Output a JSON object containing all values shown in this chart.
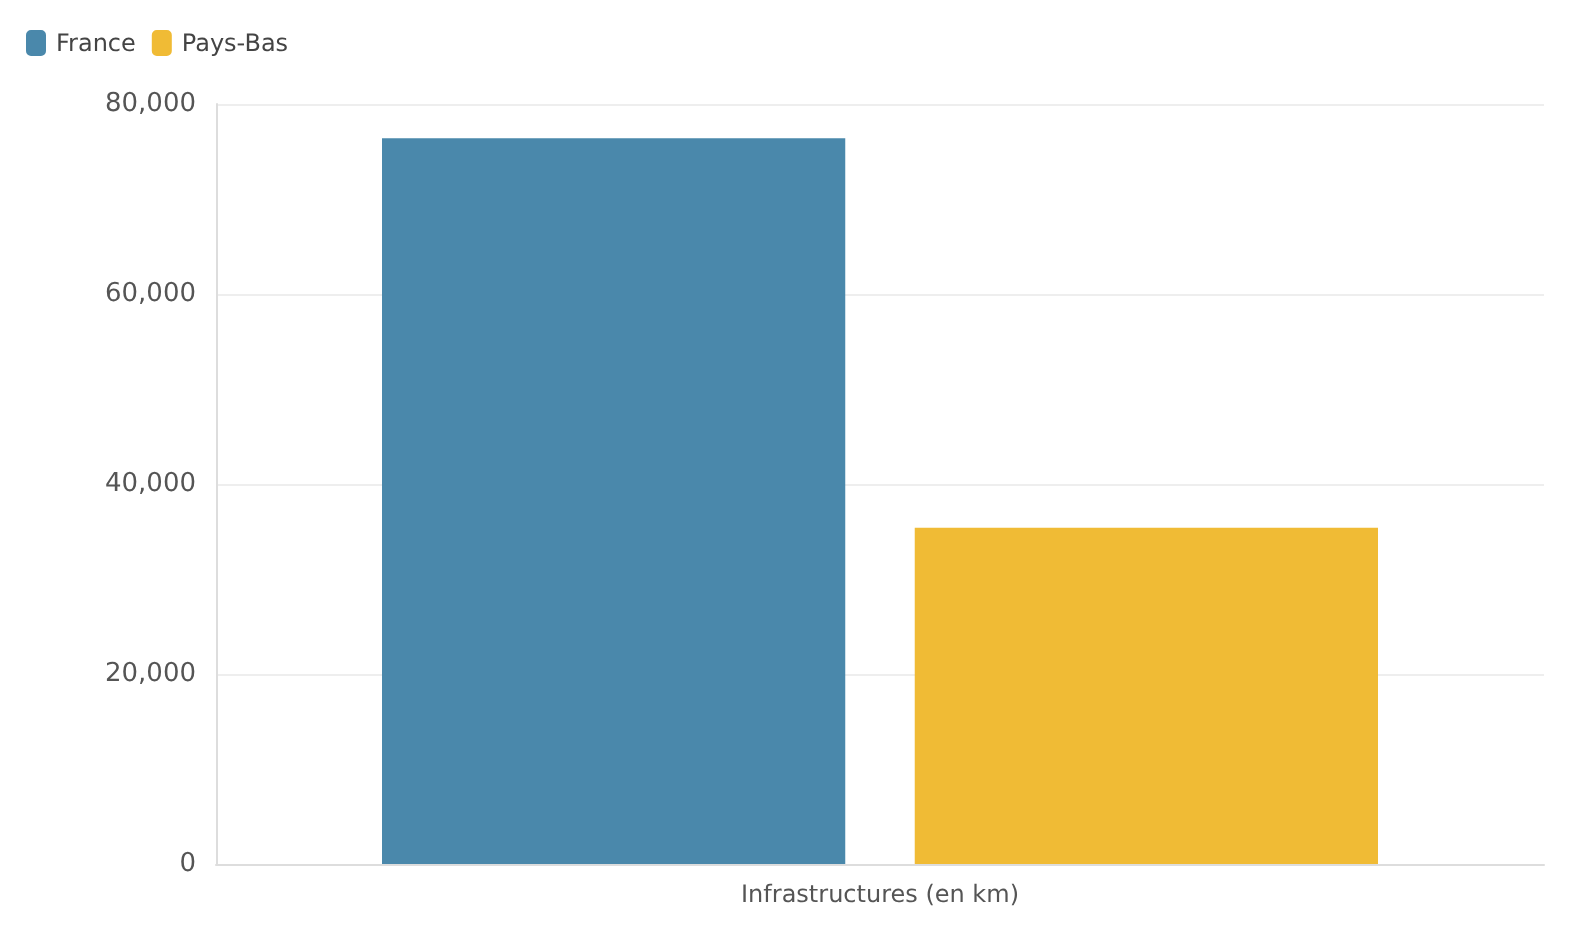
{
  "chart_data": {
    "type": "bar",
    "categories": [
      "Infrastructures (en km)"
    ],
    "series": [
      {
        "name": "France",
        "color": "#4a88ab",
        "values": [
          76400
        ]
      },
      {
        "name": "Pays-Bas",
        "color": "#f0bb35",
        "values": [
          35400
        ]
      }
    ],
    "ylim": [
      0,
      80000
    ],
    "yticks": [
      0,
      {
        "value": 20000,
        "label": "20,000"
      },
      {
        "value": 40000,
        "label": "40,000"
      },
      {
        "value": 60000,
        "label": "60,000"
      },
      {
        "value": 80000,
        "label": "80,000"
      }
    ],
    "grid": "y",
    "legend": "top left"
  }
}
